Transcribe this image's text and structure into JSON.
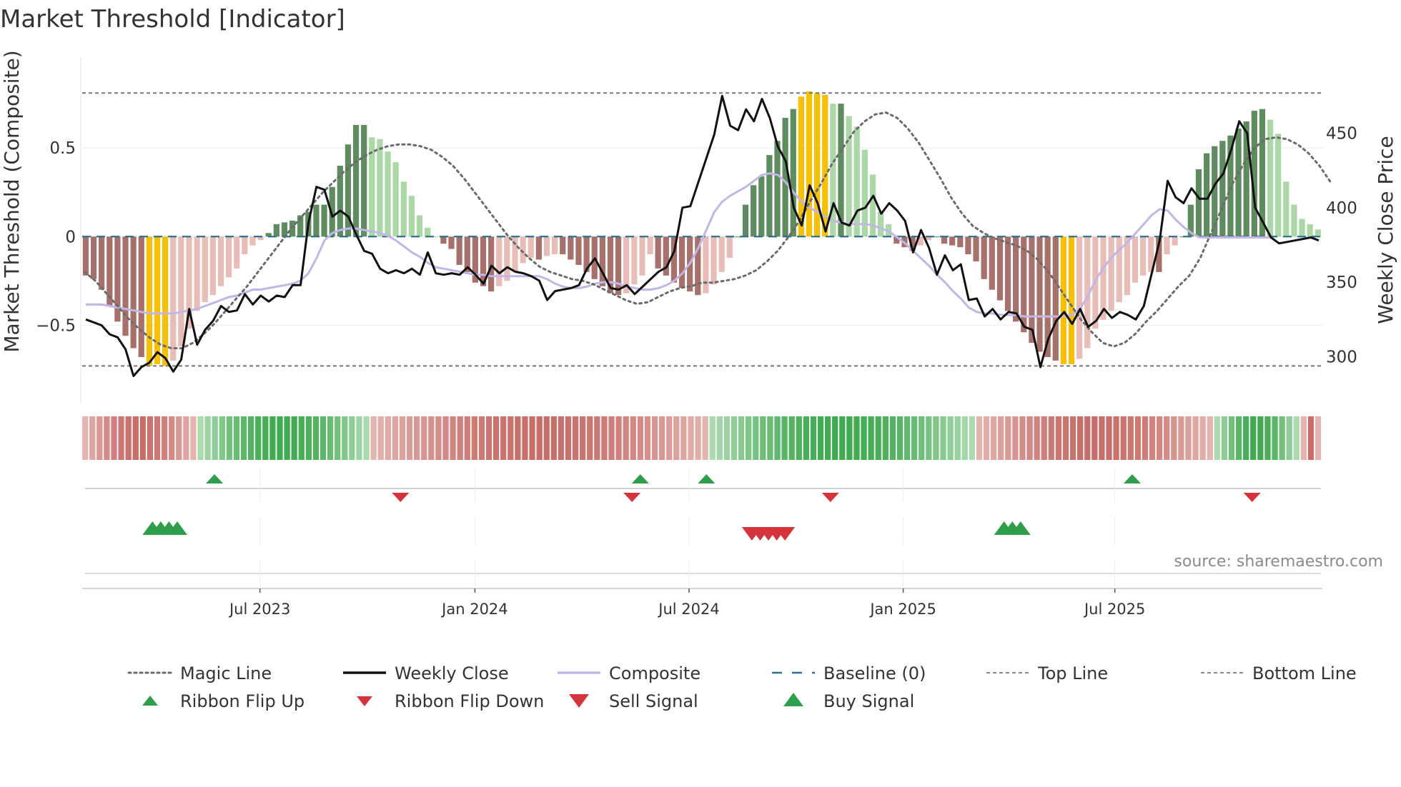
{
  "chart_data": {
    "type": "bar+line",
    "title": "Market Threshold [Indicator]",
    "ylabel_left": "Market Threshold (Composite)",
    "ylabel_right": "Weekly Close Price",
    "source": "source: sharemaestro.com",
    "left_axis": {
      "ylim": [
        -0.93,
        0.92
      ],
      "ticks": [
        0.5,
        0,
        -0.5
      ],
      "tick_labels": [
        "0.5",
        "0",
        "−0.5"
      ]
    },
    "right_axis": {
      "ylim": [
        270,
        490
      ],
      "ticks": [
        450,
        400,
        350,
        300
      ],
      "tick_labels": [
        "450",
        "400",
        "350",
        "300"
      ]
    },
    "x_range_weeks": [
      0,
      150
    ],
    "x_ticks": [
      {
        "week": 21.5,
        "label": "Jul 2023"
      },
      {
        "week": 47.5,
        "label": "Jan 2024"
      },
      {
        "week": 73.4,
        "label": "Jul 2024"
      },
      {
        "week": 99.3,
        "label": "Jan 2025"
      },
      {
        "week": 124.9,
        "label": "Jul 2025"
      }
    ],
    "top_line": 0.81,
    "bottom_line": -0.73,
    "composite_bars": [
      -0.22,
      -0.24,
      -0.3,
      -0.39,
      -0.48,
      -0.56,
      -0.63,
      -0.68,
      -0.73,
      -0.72,
      -0.73,
      -0.7,
      -0.62,
      -0.52,
      -0.42,
      -0.37,
      -0.33,
      -0.28,
      -0.23,
      -0.18,
      -0.1,
      -0.05,
      -0.02,
      0.02,
      0.07,
      0.08,
      0.09,
      0.12,
      0.14,
      0.18,
      0.18,
      0.28,
      0.4,
      0.52,
      0.63,
      0.63,
      0.56,
      0.55,
      0.48,
      0.42,
      0.31,
      0.23,
      0.12,
      0.05,
      0.0,
      -0.04,
      -0.07,
      -0.16,
      -0.2,
      -0.26,
      -0.28,
      -0.31,
      -0.28,
      -0.25,
      -0.2,
      -0.15,
      -0.12,
      -0.13,
      -0.11,
      -0.1,
      -0.1,
      -0.13,
      -0.16,
      -0.2,
      -0.24,
      -0.28,
      -0.32,
      -0.33,
      -0.32,
      -0.27,
      -0.22,
      -0.1,
      -0.18,
      -0.22,
      -0.26,
      -0.29,
      -0.31,
      -0.33,
      -0.32,
      -0.27,
      -0.2,
      -0.12,
      0.0,
      0.18,
      0.29,
      0.34,
      0.46,
      0.54,
      0.67,
      0.72,
      0.79,
      0.82,
      0.81,
      0.8,
      0.75,
      0.75,
      0.68,
      0.62,
      0.49,
      0.35,
      0.14,
      0.07,
      -0.04,
      -0.06,
      -0.08,
      -0.05,
      -0.02,
      0.0,
      -0.04,
      -0.05,
      -0.06,
      -0.1,
      -0.14,
      -0.24,
      -0.3,
      -0.36,
      -0.42,
      -0.48,
      -0.54,
      -0.6,
      -0.65,
      -0.68,
      -0.7,
      -0.72,
      -0.72,
      -0.69,
      -0.63,
      -0.52,
      -0.47,
      -0.42,
      -0.37,
      -0.33,
      -0.26,
      -0.22,
      -0.2,
      -0.2,
      -0.1,
      -0.05,
      0.0,
      0.18,
      0.38,
      0.47,
      0.51,
      0.54,
      0.57,
      0.61,
      0.65,
      0.71,
      0.72,
      0.66,
      0.58,
      0.31,
      0.18,
      0.1,
      0.07,
      0.04
    ],
    "weekly_close": [
      325,
      323,
      321,
      315,
      313,
      305,
      287,
      293,
      296,
      303,
      299,
      290,
      298,
      332,
      308,
      318,
      324,
      334,
      330,
      331,
      342,
      335,
      341,
      337,
      341,
      340,
      348,
      348,
      390,
      414,
      412,
      394,
      398,
      394,
      382,
      371,
      369,
      359,
      356,
      358,
      356,
      359,
      355,
      370,
      356,
      355,
      356,
      355,
      360,
      355,
      349,
      361,
      356,
      360,
      357,
      356,
      354,
      351,
      338,
      344,
      345,
      346,
      348,
      359,
      366,
      356,
      346,
      345,
      348,
      342,
      347,
      352,
      357,
      360,
      371,
      400,
      401,
      417,
      433,
      449,
      475,
      455,
      452,
      466,
      458,
      473,
      460,
      441,
      431,
      400,
      388,
      415,
      403,
      384,
      403,
      390,
      388,
      398,
      400,
      408,
      396,
      403,
      398,
      391,
      370,
      385,
      373,
      355,
      368,
      358,
      362,
      338,
      339,
      327,
      332,
      325,
      330,
      329,
      320,
      318,
      293,
      312,
      324,
      330,
      322,
      332,
      320,
      324,
      332,
      326,
      330,
      328,
      325,
      334,
      356,
      378,
      418,
      407,
      403,
      413,
      406,
      406,
      416,
      423,
      439,
      458,
      450,
      400,
      390,
      380,
      376,
      377,
      378,
      379,
      380,
      378
    ],
    "composite_line": [
      335,
      335,
      335,
      334,
      333,
      332,
      331,
      330,
      329,
      329,
      329,
      329,
      330,
      331,
      332,
      334,
      336,
      338,
      340,
      341,
      343,
      345,
      345,
      346,
      347,
      348,
      349,
      351,
      356,
      366,
      378,
      383,
      385,
      386,
      386,
      385,
      384,
      383,
      381,
      378,
      374,
      370,
      367,
      363,
      360,
      359,
      358,
      357,
      356,
      355,
      355,
      354,
      354,
      354,
      354,
      354,
      354,
      354,
      352,
      349,
      347,
      346,
      346,
      347,
      349,
      350,
      350,
      349,
      347,
      346,
      345,
      345,
      346,
      348,
      351,
      356,
      363,
      373,
      385,
      397,
      404,
      408,
      411,
      414,
      418,
      422,
      423,
      422,
      417,
      410,
      404,
      400,
      397,
      394,
      391,
      390,
      389,
      389,
      389,
      388,
      386,
      384,
      380,
      376,
      371,
      366,
      361,
      355,
      350,
      344,
      339,
      333,
      330,
      329,
      329,
      328,
      328,
      328,
      327,
      327,
      327,
      327,
      327,
      327,
      328,
      332,
      341,
      352,
      360,
      367,
      372,
      377,
      383,
      389,
      395,
      399,
      398,
      392,
      387,
      383,
      380,
      380,
      380,
      380,
      380,
      380,
      380,
      380,
      380,
      380
    ],
    "magic_line": [
      -0.2,
      -0.25,
      -0.32,
      -0.39,
      -0.46,
      -0.52,
      -0.57,
      -0.61,
      -0.63,
      -0.63,
      -0.6,
      -0.55,
      -0.49,
      -0.42,
      -0.35,
      -0.28,
      -0.2,
      -0.12,
      -0.04,
      0.04,
      0.11,
      0.18,
      0.25,
      0.31,
      0.37,
      0.42,
      0.46,
      0.49,
      0.51,
      0.52,
      0.52,
      0.51,
      0.49,
      0.45,
      0.4,
      0.33,
      0.25,
      0.17,
      0.09,
      0.01,
      -0.06,
      -0.12,
      -0.17,
      -0.2,
      -0.22,
      -0.24,
      -0.25,
      -0.27,
      -0.3,
      -0.33,
      -0.36,
      -0.38,
      -0.37,
      -0.34,
      -0.31,
      -0.29,
      -0.28,
      -0.26,
      -0.26,
      -0.25,
      -0.24,
      -0.22,
      -0.19,
      -0.14,
      -0.08,
      0.0,
      0.09,
      0.2,
      0.3,
      0.41,
      0.5,
      0.59,
      0.65,
      0.69,
      0.7,
      0.67,
      0.61,
      0.53,
      0.43,
      0.33,
      0.22,
      0.13,
      0.06,
      0.02,
      -0.01,
      -0.03,
      -0.05,
      -0.08,
      -0.13,
      -0.2,
      -0.29,
      -0.38,
      -0.47,
      -0.54,
      -0.6,
      -0.62,
      -0.6,
      -0.55,
      -0.48,
      -0.42,
      -0.35,
      -0.28,
      -0.22,
      -0.12,
      0.02,
      0.16,
      0.3,
      0.41,
      0.5,
      0.55,
      0.56,
      0.55,
      0.52,
      0.47,
      0.4,
      0.31
    ],
    "magic_line_start_week": 0.3,
    "magic_line_step": 1.31,
    "ribbon": "rrrrrrrrrrrrrrrrggggggggggggggggggggggggrrrrrrrrrrrrrrrrrrrrrrrrrrrrrrrrrrrrrrrrrrrrrrrgggggggggggggggggggggggggggggggggggggrrrrrrrrrrrrrrrrrrrrrrrrrrrrrrrrrggggggggggggrrr",
    "ribbon_flip_up_weeks": [
      16,
      67.5,
      75.5,
      127
    ],
    "ribbon_flip_down_weeks": [
      38.5,
      66.5,
      90.5,
      141.5
    ],
    "buy_signal_weeks": [
      8.5,
      9.5,
      10.5,
      11.5,
      111.5,
      112.5,
      113.5
    ],
    "sell_signal_weeks": [
      81,
      82,
      83,
      84,
      85
    ],
    "colors": {
      "bar_neg_dark": "#a8706b",
      "bar_neg_light": "#e8bcb7",
      "bar_pos_dark": "#5e8c5f",
      "bar_pos_light": "#acd7a7",
      "bar_extreme": "#f8c005",
      "weekly_close": "#111111",
      "composite": "#c2b6e6",
      "magic": "#6b6b6b",
      "baseline": "#2f6f8f",
      "flip_up": "#2e9e4a",
      "flip_down": "#d6343c",
      "buy": "#2e9e4a",
      "sell": "#d6343c"
    },
    "legend": [
      {
        "label": "Magic Line",
        "style": "dotted"
      },
      {
        "label": "Weekly Close",
        "style": "solid-black"
      },
      {
        "label": "Composite",
        "style": "solid-lavender"
      },
      {
        "label": "Baseline (0)",
        "style": "dashed-blue"
      },
      {
        "label": "Top Line",
        "style": "dashed-gray"
      },
      {
        "label": "Bottom Line",
        "style": "dashed-gray"
      },
      {
        "label": "Ribbon Flip Up",
        "style": "tri-up-small"
      },
      {
        "label": "Ribbon Flip Down",
        "style": "tri-down-small"
      },
      {
        "label": "Sell Signal",
        "style": "tri-down-big"
      },
      {
        "label": "Buy Signal",
        "style": "tri-up-big"
      }
    ]
  }
}
